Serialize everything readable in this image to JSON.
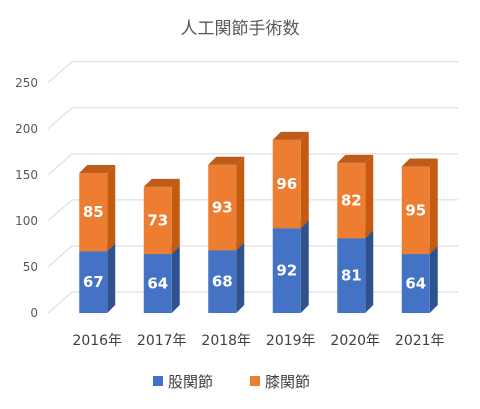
{
  "chart_data": {
    "type": "bar",
    "stacked": true,
    "three_d": true,
    "title": "人工関節手術数",
    "categories": [
      "2016年",
      "2017年",
      "2018年",
      "2019年",
      "2020年",
      "2021年"
    ],
    "series": [
      {
        "name": "股関節",
        "values": [
          67,
          64,
          68,
          92,
          81,
          64
        ]
      },
      {
        "name": "膝関節",
        "values": [
          85,
          73,
          93,
          96,
          82,
          95
        ]
      }
    ],
    "ylim": [
      0,
      250
    ],
    "yticks": [
      "0",
      "50",
      "100",
      "150",
      "200",
      "250"
    ],
    "grid": true,
    "legend_position": "bottom",
    "colors": {
      "股関節": {
        "front": "#4472C4",
        "side": "#2F528F",
        "top": "#4A73B8"
      },
      "膝関節": {
        "front": "#ED7D31",
        "side": "#C55A11",
        "top": "#BE5B1B"
      }
    }
  }
}
